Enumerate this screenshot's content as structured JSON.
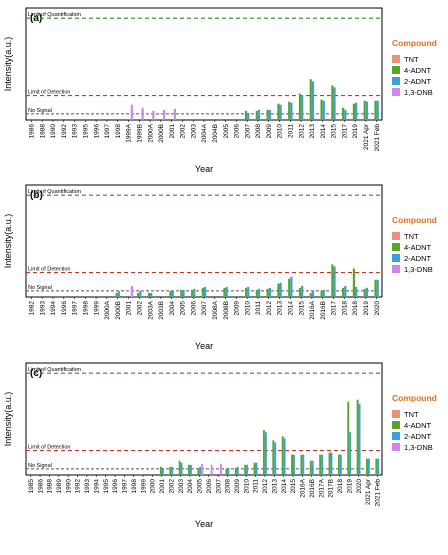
{
  "figure": {
    "y_axis_label": "Intensity(a.u.)",
    "x_axis_label": "Year",
    "loq_label": "Limit of Quantification",
    "lod_label": "Limit of Detection",
    "nosignal_label": "No Signal",
    "legend_title": "Compound"
  },
  "colors": {
    "TNT": "#e8907b",
    "4-ADNT": "#5ba42a",
    "2-ADNT": "#3ba0d8",
    "1,3-DNB": "#cc88ee",
    "loq_line": "#2e8b22",
    "lod_line": "#c0392b",
    "nosignal_line": "#555555",
    "legend_title": "#e07020"
  },
  "chart_data": [
    {
      "type": "bar",
      "panel_label": "(a)",
      "legend": [
        "TNT",
        "4-ADNT",
        "2-ADNT",
        "1,3-DNB"
      ],
      "levels": {
        "loq": 5.0,
        "lod": 1.2,
        "nosignal": 0.3
      },
      "ylim": [
        0,
        5.5
      ],
      "categories": [
        "1986",
        "1988",
        "1990",
        "1992",
        "1993",
        "1995",
        "1996",
        "1997",
        "1998",
        "1999A",
        "1999B",
        "2000A",
        "2000B",
        "2001",
        "2002",
        "2003",
        "2004A",
        "2004B",
        "2005",
        "2006",
        "2007",
        "2008",
        "2009",
        "2010",
        "2011",
        "2012",
        "2013",
        "2014",
        "2015",
        "2017",
        "2019",
        "2021 Apr",
        "2021 Feb"
      ],
      "series": [
        {
          "name": "TNT",
          "values": [
            0,
            0,
            0,
            0,
            0,
            0,
            0,
            0,
            0,
            0,
            0,
            0,
            0,
            0,
            0,
            0,
            0,
            0,
            0,
            0,
            0,
            0,
            0,
            0,
            0,
            0,
            0,
            0,
            0,
            0,
            0,
            0,
            0
          ]
        },
        {
          "name": "4-ADNT",
          "values": [
            0,
            0,
            0,
            0,
            0,
            0,
            0,
            0,
            0,
            0,
            0,
            0,
            0,
            0,
            0,
            0,
            0,
            0,
            0,
            0,
            0.45,
            0.45,
            0.5,
            0.8,
            0.9,
            1.3,
            2.0,
            1.0,
            1.7,
            0.6,
            0.8,
            0.95,
            0.95
          ]
        },
        {
          "name": "2-ADNT",
          "values": [
            0,
            0,
            0,
            0,
            0,
            0,
            0,
            0,
            0,
            0,
            0,
            0,
            0,
            0,
            0,
            0,
            0,
            0,
            0,
            0,
            0.35,
            0.5,
            0.5,
            0.75,
            0.85,
            1.2,
            1.9,
            0.95,
            1.6,
            0.5,
            0.85,
            0.9,
            0.95
          ]
        },
        {
          "name": "1,3-DNB",
          "values": [
            0,
            0,
            0,
            0,
            0,
            0,
            0,
            0,
            0,
            0.75,
            0.6,
            0.45,
            0.5,
            0.55,
            0,
            0,
            0,
            0,
            0,
            0,
            0,
            0,
            0,
            0,
            0,
            0,
            0,
            0,
            0,
            0,
            0,
            0,
            0
          ]
        }
      ]
    },
    {
      "type": "bar",
      "panel_label": "(b)",
      "legend": [
        "TNT",
        "4-ADNT",
        "2-ADNT",
        "1,3-DNB"
      ],
      "levels": {
        "loq": 5.0,
        "lod": 1.2,
        "nosignal": 0.3
      },
      "ylim": [
        0,
        5.5
      ],
      "categories": [
        "1982",
        "1993",
        "1994",
        "1996",
        "1997",
        "1998",
        "1999",
        "2000A",
        "2000B",
        "2001",
        "2002",
        "2003A",
        "2003B",
        "2004",
        "2005",
        "2006",
        "2007",
        "2008A",
        "2008B",
        "2009",
        "2010",
        "2011",
        "2012",
        "2013",
        "2014",
        "2015",
        "2016A",
        "2016B",
        "2017",
        "2018",
        "2018",
        "2019",
        "2020"
      ],
      "series": [
        {
          "name": "TNT",
          "values": [
            0,
            0,
            0,
            0,
            0,
            0,
            0,
            0,
            0,
            0,
            0,
            0,
            0,
            0,
            0,
            0,
            0,
            0,
            0,
            0,
            0,
            0,
            0,
            0,
            0,
            0,
            0,
            0,
            0,
            0,
            0,
            0,
            0
          ]
        },
        {
          "name": "4-ADNT",
          "values": [
            0,
            0,
            0,
            0,
            0,
            0,
            0,
            0,
            0.2,
            0,
            0.2,
            0.2,
            0,
            0.3,
            0.35,
            0.35,
            0.45,
            0,
            0.45,
            0,
            0.45,
            0.35,
            0.4,
            0.65,
            0.9,
            0.45,
            0.2,
            0.3,
            1.6,
            0.45,
            1.4,
            0.4,
            0.85
          ]
        },
        {
          "name": "2-ADNT",
          "values": [
            0,
            0,
            0,
            0,
            0,
            0,
            0,
            0,
            0.3,
            0,
            0.3,
            0.2,
            0,
            0.3,
            0.35,
            0.4,
            0.5,
            0,
            0.5,
            0,
            0.5,
            0.4,
            0.45,
            0.7,
            1.0,
            0.55,
            0.3,
            0.35,
            1.5,
            0.55,
            0.5,
            0.45,
            0.85
          ]
        },
        {
          "name": "1,3-DNB",
          "values": [
            0,
            0,
            0,
            0,
            0,
            0,
            0,
            0,
            0,
            0.55,
            0,
            0,
            0,
            0,
            0,
            0,
            0,
            0,
            0,
            0,
            0,
            0,
            0,
            0,
            0,
            0,
            0,
            0,
            0,
            0,
            0,
            0,
            0
          ]
        }
      ]
    },
    {
      "type": "bar",
      "panel_label": "(c)",
      "legend": [
        "TNT",
        "4-ADNT",
        "2-ADNT",
        "1,3-DNB"
      ],
      "levels": {
        "loq": 5.0,
        "lod": 1.2,
        "nosignal": 0.3
      },
      "ylim": [
        0,
        5.5
      ],
      "categories": [
        "1985",
        "1986",
        "1988",
        "1989",
        "1990",
        "1992",
        "1993",
        "1994",
        "1995",
        "1996",
        "1997",
        "1998",
        "1999",
        "2000",
        "2001",
        "2002",
        "2003",
        "2004",
        "2005",
        "2006",
        "2007",
        "2008",
        "2009",
        "2010",
        "2011",
        "2012",
        "2013",
        "2014",
        "2015",
        "2016A",
        "2016B",
        "2017A",
        "2017B",
        "2018",
        "2019",
        "2020",
        "2021 Apr",
        "2021 Feb"
      ],
      "series": [
        {
          "name": "TNT",
          "values": [
            0,
            0,
            0,
            0,
            0,
            0,
            0,
            0,
            0,
            0,
            0,
            0,
            0,
            0,
            0,
            0,
            0,
            0,
            0,
            0,
            0,
            0,
            0,
            0,
            0,
            0,
            0,
            0,
            0,
            0,
            0,
            0,
            0,
            0,
            0,
            0,
            0,
            0
          ]
        },
        {
          "name": "4-ADNT",
          "values": [
            0,
            0,
            0,
            0,
            0,
            0,
            0,
            0,
            0,
            0,
            0,
            0,
            0,
            0,
            0.4,
            0.4,
            0.7,
            0.5,
            0.35,
            0,
            0,
            0.3,
            0.35,
            0.5,
            0.6,
            2.2,
            1.7,
            1.9,
            1.0,
            1.0,
            0.7,
            1.0,
            1.1,
            1.0,
            3.6,
            3.7,
            0.8,
            0.8
          ]
        },
        {
          "name": "2-ADNT",
          "values": [
            0,
            0,
            0,
            0,
            0,
            0,
            0,
            0,
            0,
            0,
            0,
            0,
            0,
            0,
            0.35,
            0.4,
            0.6,
            0.5,
            0.4,
            0,
            0,
            0.35,
            0.4,
            0.5,
            0.6,
            2.1,
            1.6,
            1.8,
            1.0,
            1.0,
            0.7,
            1.0,
            1.1,
            1.0,
            2.1,
            3.5,
            0.8,
            0.8
          ]
        },
        {
          "name": "1,3-DNB",
          "values": [
            0,
            0,
            0,
            0,
            0,
            0,
            0,
            0,
            0,
            0,
            0,
            0,
            0,
            0,
            0,
            0,
            0,
            0,
            0.55,
            0.5,
            0.55,
            0,
            0,
            0,
            0,
            0,
            0,
            0,
            0,
            0,
            0,
            0,
            0,
            0,
            0,
            0,
            0,
            0
          ]
        }
      ]
    }
  ]
}
